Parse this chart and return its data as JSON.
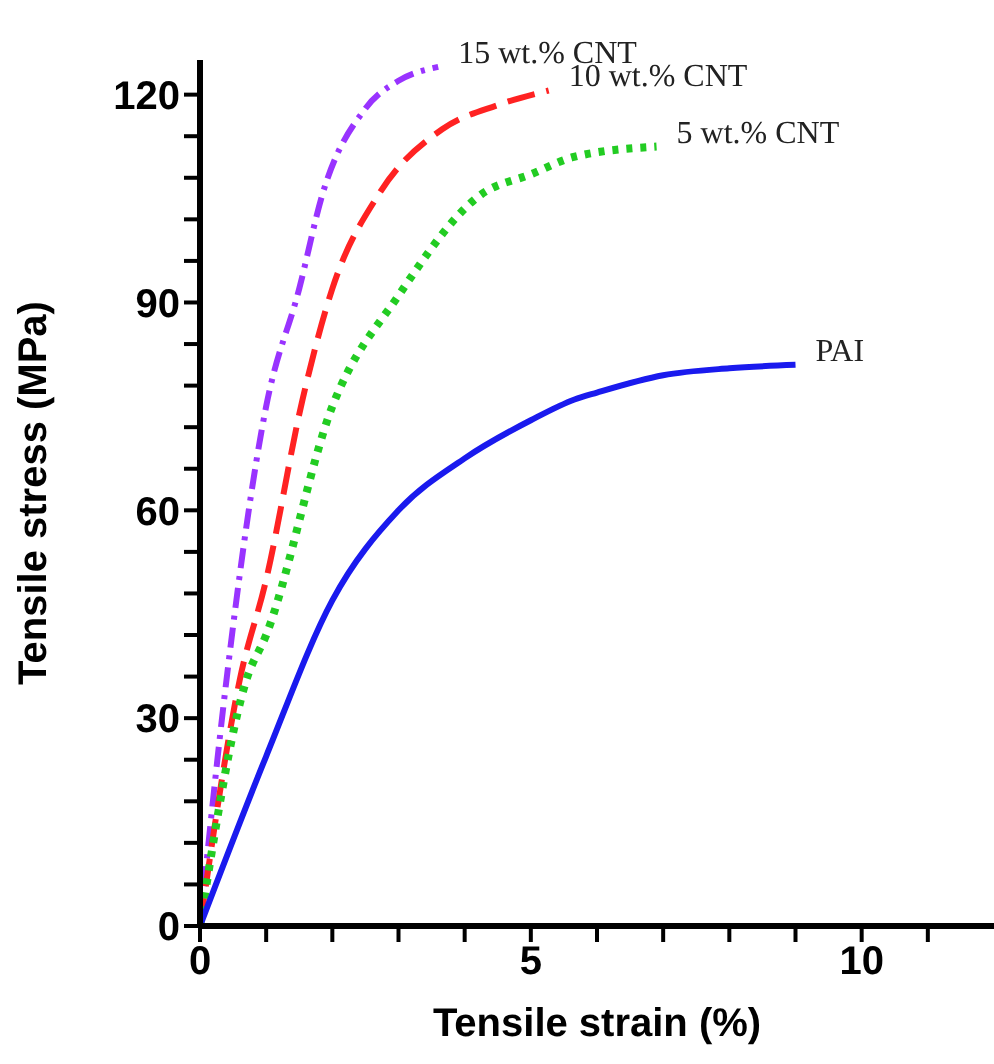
{
  "chart_data": {
    "type": "line",
    "xlabel": "Tensile strain (%)",
    "ylabel": "Tensile stress (MPa)",
    "xlim": [
      0,
      12
    ],
    "ylim": [
      0,
      125
    ],
    "xticks": [
      0,
      {
        "value": 1,
        "label": null
      },
      {
        "value": 2,
        "label": null
      },
      {
        "value": 3,
        "label": null
      },
      {
        "value": 4,
        "label": null
      },
      5,
      {
        "value": 6,
        "label": null
      },
      {
        "value": 7,
        "label": null
      },
      {
        "value": 8,
        "label": null
      },
      {
        "value": 9,
        "label": null
      },
      10,
      {
        "value": 11,
        "label": null
      }
    ],
    "yticks": [
      0,
      {
        "value": 6,
        "label": null
      },
      {
        "value": 12,
        "label": null
      },
      {
        "value": 18,
        "label": null
      },
      {
        "value": 24,
        "label": null
      },
      30,
      {
        "value": 36,
        "label": null
      },
      {
        "value": 42,
        "label": null
      },
      {
        "value": 48,
        "label": null
      },
      {
        "value": 54,
        "label": null
      },
      60,
      {
        "value": 66,
        "label": null
      },
      {
        "value": 72,
        "label": null
      },
      {
        "value": 78,
        "label": null
      },
      {
        "value": 84,
        "label": null
      },
      90,
      {
        "value": 96,
        "label": null
      },
      {
        "value": 102,
        "label": null
      },
      {
        "value": 108,
        "label": null
      },
      {
        "value": 114,
        "label": null
      },
      120
    ],
    "marker": "none",
    "series": [
      {
        "name": "15 wt.% CNT",
        "color": "#9933ff",
        "line_style": "dashdot",
        "x": [
          0,
          0.4,
          1.0,
          1.5,
          1.85,
          2.5,
          3.0,
          3.6
        ],
        "values": [
          0,
          35.5,
          75,
          92,
          105.6,
          118,
          122,
          124
        ]
      },
      {
        "name": "10 wt.% CNT",
        "color": "#ff2222",
        "line_style": "dashed",
        "x": [
          0,
          0.6,
          1.0,
          1.55,
          2.0,
          2.7,
          3.66,
          4.5,
          5.27
        ],
        "values": [
          0,
          35.5,
          50,
          76,
          92,
          105.6,
          115,
          118.5,
          120.6
        ]
      },
      {
        "name": "5 wt.% CNT",
        "color": "#22cc22",
        "line_style": "dotted",
        "x": [
          0,
          0.7,
          1.0,
          2.0,
          3.0,
          4.25,
          5.0,
          5.65,
          6.9
        ],
        "values": [
          0,
          35.5,
          42,
          75,
          91,
          105.6,
          108.5,
          111,
          112.5
        ]
      },
      {
        "name": "PAI",
        "color": "#1a1aee",
        "line_style": "solid",
        "x": [
          0,
          1.0,
          2.0,
          3.0,
          4.0,
          5.0,
          5.66,
          6.0,
          7.0,
          8.0,
          9.0
        ],
        "values": [
          0,
          24.5,
          47,
          60,
          67.5,
          73,
          76,
          77,
          79.5,
          80.5,
          81
        ]
      }
    ]
  }
}
